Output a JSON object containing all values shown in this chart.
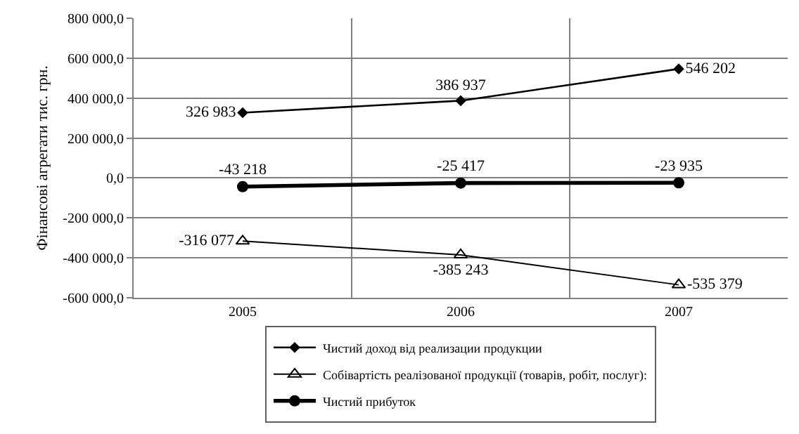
{
  "chart_data": {
    "type": "line",
    "ylabel": "Фінансові агрегати тис. грн.",
    "categories": [
      "2005",
      "2006",
      "2007"
    ],
    "series": [
      {
        "name": "Чистий доход від реализации продукции",
        "color": "#000000",
        "marker": "diamond",
        "values": [
          326983,
          386937,
          546202
        ],
        "value_labels": [
          "326 983",
          "386 937",
          "546 202"
        ]
      },
      {
        "name": "Собівартість реалізованої продукції (товарів, робіт, послуг):",
        "color": "#000000",
        "marker": "triangle",
        "values": [
          -316077,
          -385243,
          -535379
        ],
        "value_labels": [
          "-316 077",
          "-385 243",
          "-535 379"
        ]
      },
      {
        "name": "Чистий прибуток",
        "color": "#000000",
        "marker": "circle",
        "values": [
          -43218,
          -25417,
          -23935
        ],
        "value_labels": [
          "-43 218",
          "-25 417",
          "-23 935"
        ]
      }
    ],
    "ylim": [
      -600000,
      800000
    ],
    "yticks": [
      {
        "value": -600000,
        "label": "-600 000,0"
      },
      {
        "value": -400000,
        "label": "-400 000,0"
      },
      {
        "value": -200000,
        "label": "-200 000,0"
      },
      {
        "value": 0,
        "label": "0,0"
      },
      {
        "value": 200000,
        "label": "200 000,0"
      },
      {
        "value": 400000,
        "label": "400 000,0"
      },
      {
        "value": 600000,
        "label": "600 000,0"
      },
      {
        "value": 800000,
        "label": "800 000,0"
      }
    ],
    "grid": true,
    "legend": "bottom"
  }
}
